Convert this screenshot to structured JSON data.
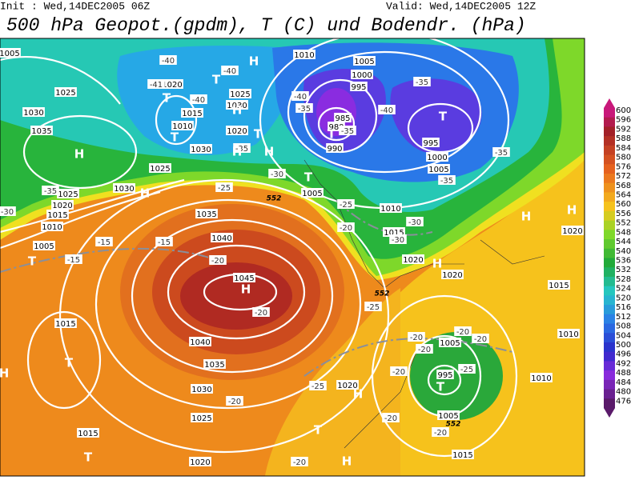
{
  "header": {
    "init": "Init : Wed,14DEC2005 06Z",
    "valid": "Valid: Wed,14DEC2005 12Z",
    "title": "500 hPa Geopot.(gpdm), T (C) und Bodendr. (hPa)"
  },
  "colorbar": {
    "ticks": [
      600,
      596,
      592,
      588,
      584,
      580,
      576,
      572,
      568,
      564,
      560,
      556,
      552,
      548,
      544,
      540,
      536,
      532,
      528,
      524,
      520,
      516,
      512,
      508,
      504,
      500,
      496,
      492,
      488,
      484,
      480,
      476
    ]
  },
  "map": {
    "isobar_labels": [
      "1005",
      "1025",
      "1030",
      "1035",
      "1025",
      "1030",
      "1025",
      "1020",
      "1015",
      "1010",
      "1005",
      "1035",
      "1040",
      "1045",
      "1040",
      "1035",
      "1030",
      "1025",
      "1015",
      "1020",
      "1015",
      "1010",
      "1005",
      "1000",
      "995",
      "985",
      "980",
      "990",
      "995",
      "1000",
      "1005",
      "1010",
      "1015",
      "1020",
      "1020",
      "1005",
      "1020",
      "1005",
      "995",
      "1005",
      "1015",
      "1010",
      "1015",
      "1010",
      "1020",
      "1025",
      "1030",
      "1020",
      "1015",
      "1010",
      "1020",
      "1030"
    ],
    "temperature_labels": [
      "-40",
      "-40",
      "-40",
      "-41",
      "-35",
      "-30",
      "-25",
      "-30",
      "-35",
      "-15",
      "-15",
      "-15",
      "-20",
      "-20",
      "-25",
      "-20",
      "-30",
      "-30",
      "-35",
      "-40",
      "-35",
      "-35",
      "-35",
      "-40",
      "-35",
      "-25",
      "-20",
      "-20",
      "-20",
      "-25",
      "-20",
      "-20",
      "-20",
      "-20",
      "-20",
      "-25",
      "-20"
    ],
    "centers": [
      "H",
      "T",
      "T",
      "H",
      "T",
      "T",
      "H",
      "H",
      "H",
      "H",
      "T",
      "T",
      "T",
      "T",
      "H",
      "T",
      "H",
      "H",
      "T",
      "T",
      "H",
      "T",
      "H",
      "H",
      "H"
    ],
    "contour_labels": [
      "552",
      "552",
      "552"
    ]
  }
}
